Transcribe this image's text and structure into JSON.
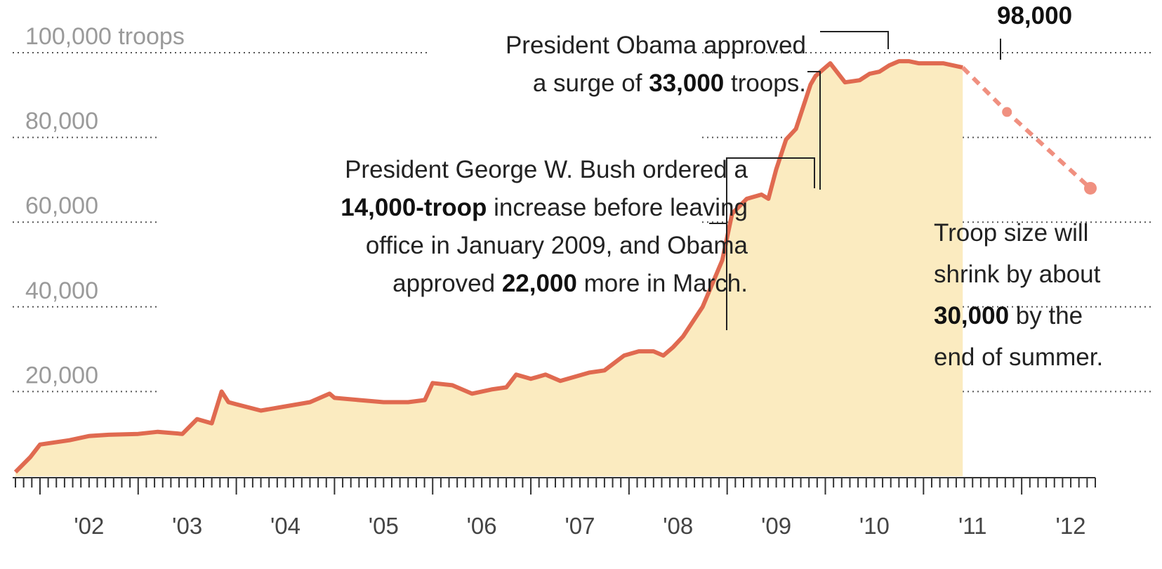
{
  "chart_data": {
    "type": "area",
    "title": "",
    "xlabel": "",
    "ylabel": "troops",
    "ylim": [
      0,
      100000
    ],
    "xlim": [
      2001.75,
      2012.75
    ],
    "y_ticks": [
      {
        "value": 100000,
        "label": "100,000 troops"
      },
      {
        "value": 80000,
        "label": "80,000"
      },
      {
        "value": 60000,
        "label": "60,000"
      },
      {
        "value": 40000,
        "label": "40,000"
      },
      {
        "value": 20000,
        "label": "20,000"
      }
    ],
    "x_ticks": [
      {
        "value": 2002,
        "label": "'02"
      },
      {
        "value": 2003,
        "label": "'03"
      },
      {
        "value": 2004,
        "label": "'04"
      },
      {
        "value": 2005,
        "label": "'05"
      },
      {
        "value": 2006,
        "label": "'06"
      },
      {
        "value": 2007,
        "label": "'07"
      },
      {
        "value": 2008,
        "label": "'08"
      },
      {
        "value": 2009,
        "label": "'09"
      },
      {
        "value": 2010,
        "label": "'10"
      },
      {
        "value": 2011,
        "label": "'11"
      },
      {
        "value": 2012,
        "label": "'12"
      }
    ],
    "grid": true,
    "series": [
      {
        "name": "",
        "color": "#e06a50",
        "fill": "#fbebc0",
        "x": [
          2001.75,
          2001.9,
          2002.0,
          2002.3,
          2002.5,
          2002.7,
          2003.0,
          2003.2,
          2003.45,
          2003.6,
          2003.75,
          2003.85,
          2003.92,
          2004.0,
          2004.25,
          2004.5,
          2004.75,
          2004.95,
          2005.0,
          2005.25,
          2005.5,
          2005.75,
          2005.92,
          2006.0,
          2006.2,
          2006.4,
          2006.6,
          2006.75,
          2006.85,
          2007.0,
          2007.15,
          2007.3,
          2007.45,
          2007.6,
          2007.75,
          2007.95,
          2008.1,
          2008.25,
          2008.35,
          2008.45,
          2008.55,
          2008.75,
          2008.95,
          2009.05,
          2009.2,
          2009.35,
          2009.42,
          2009.5,
          2009.6,
          2009.7,
          2009.85,
          2009.9,
          2010.05,
          2010.2,
          2010.35,
          2010.45,
          2010.55,
          2010.65,
          2010.75,
          2010.85,
          2010.95,
          2011.2,
          2011.4
        ],
        "y": [
          1000,
          4500,
          7500,
          8500,
          9500,
          9800,
          10000,
          10500,
          10000,
          13500,
          12500,
          20000,
          17500,
          17000,
          15500,
          16500,
          17500,
          19500,
          18500,
          18000,
          17500,
          17500,
          18000,
          22000,
          21500,
          19500,
          20500,
          21000,
          24000,
          23000,
          24000,
          22500,
          23500,
          24500,
          25000,
          28500,
          29500,
          29500,
          28500,
          30500,
          33000,
          40000,
          51000,
          62000,
          65500,
          66500,
          65500,
          72500,
          79500,
          82000,
          92500,
          94500,
          97500,
          93000,
          93500,
          95000,
          95500,
          97000,
          98000,
          98000,
          97500,
          97500,
          96500
        ]
      },
      {
        "name": "",
        "color": "#f09080",
        "dashed": true,
        "x": [
          2011.4,
          2011.85,
          2012.7
        ],
        "y": [
          96500,
          86000,
          68000
        ]
      }
    ],
    "annotations": [
      {
        "id": "obama-surge",
        "line1": "President Obama approved",
        "line2_pre": "a surge of ",
        "line2_bold": "33,000",
        "line2_post": " troops."
      },
      {
        "id": "bush-increase",
        "line1": "President George W. Bush ordered a",
        "line2_bold": "14,000-troop",
        "line2_post": " increase before leaving",
        "line3": "office in January 2009, and Obama",
        "line4_pre": "approved ",
        "line4_bold": "22,000",
        "line4_post": " more in March."
      },
      {
        "id": "shrink",
        "line1": "Troop size will",
        "line2": "shrink by about",
        "line3_bold": "30,000",
        "line3_post": " by the",
        "line4": "end of summer."
      },
      {
        "id": "peak",
        "label": "98,000"
      }
    ]
  }
}
